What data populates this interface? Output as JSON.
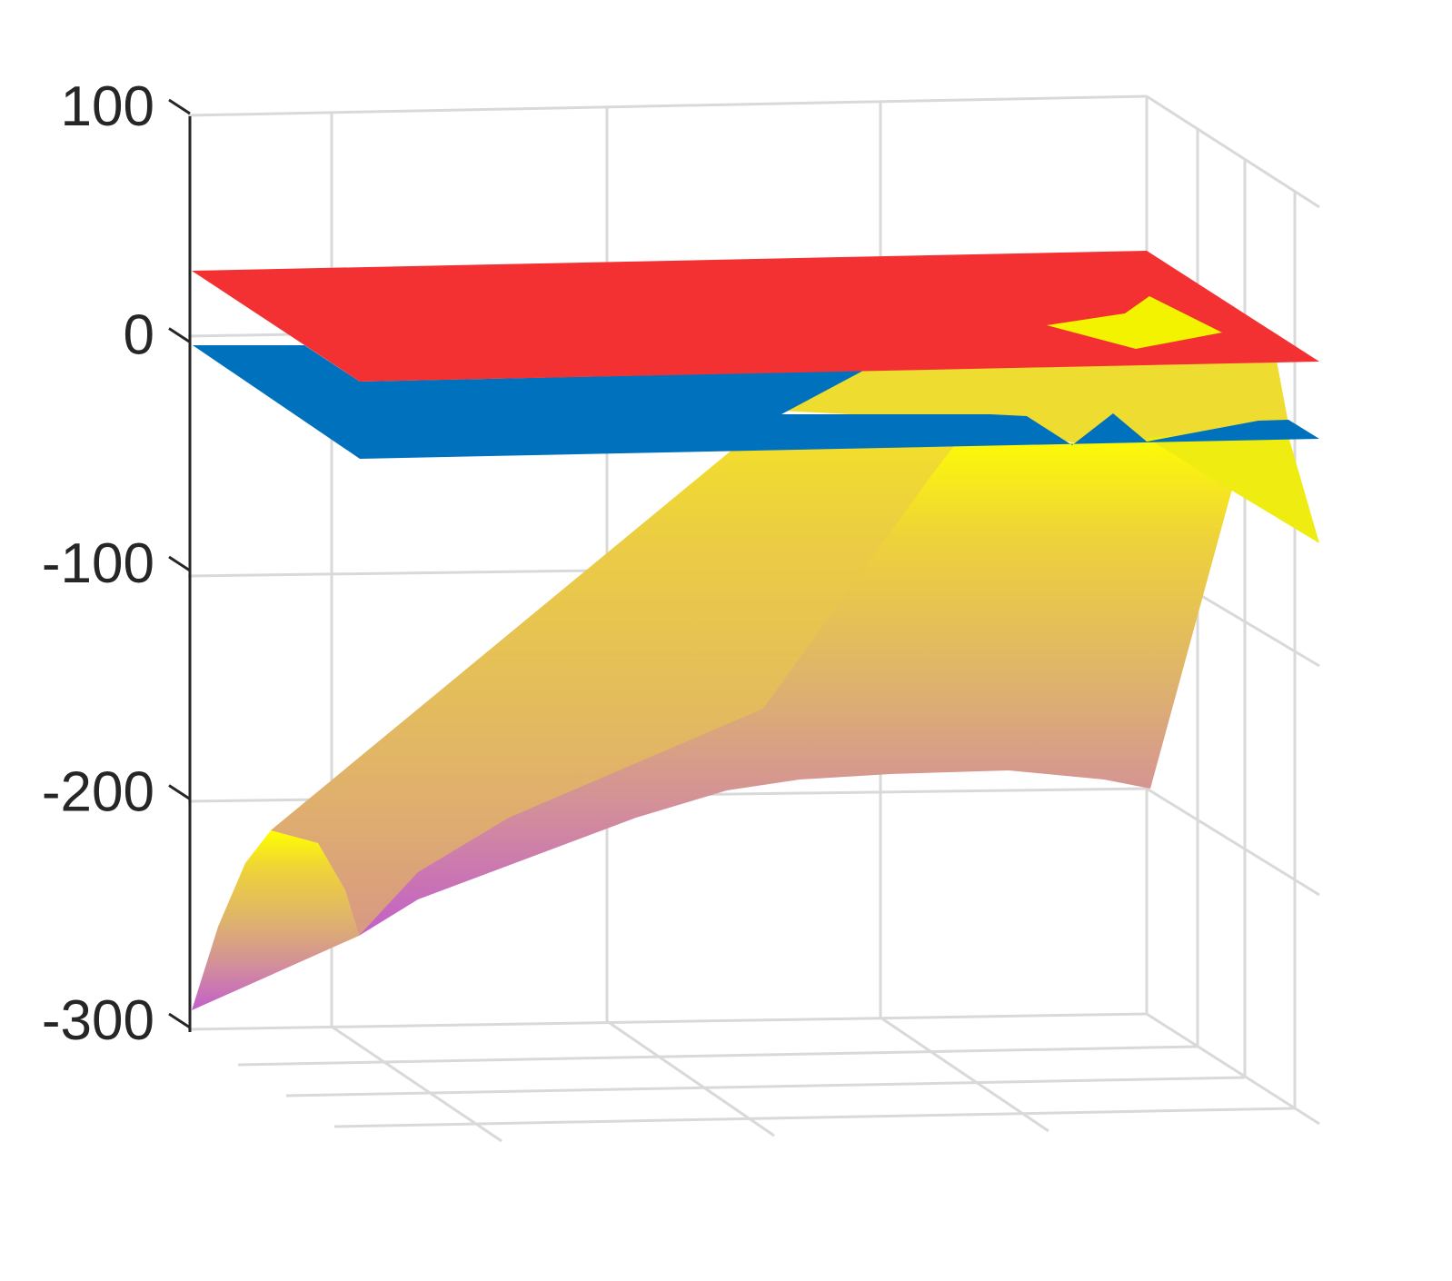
{
  "chart_data": {
    "type": "surface",
    "zlim": [
      -300,
      100
    ],
    "z_ticks": [
      100,
      0,
      -100,
      -200,
      -300
    ],
    "z_tick_labels": [
      "100",
      "0",
      "-100",
      "-200",
      "-300"
    ],
    "grid": true,
    "series": [
      {
        "kind": "plane",
        "z": 25,
        "color": "#f33133"
      },
      {
        "kind": "plane",
        "z": -25,
        "color": "#0072bd"
      },
      {
        "kind": "surface",
        "z_range": [
          -300,
          20
        ],
        "colormap": [
          "#c25fc9",
          "#d4a27a",
          "#e5c84a",
          "#ffff00"
        ]
      }
    ]
  }
}
